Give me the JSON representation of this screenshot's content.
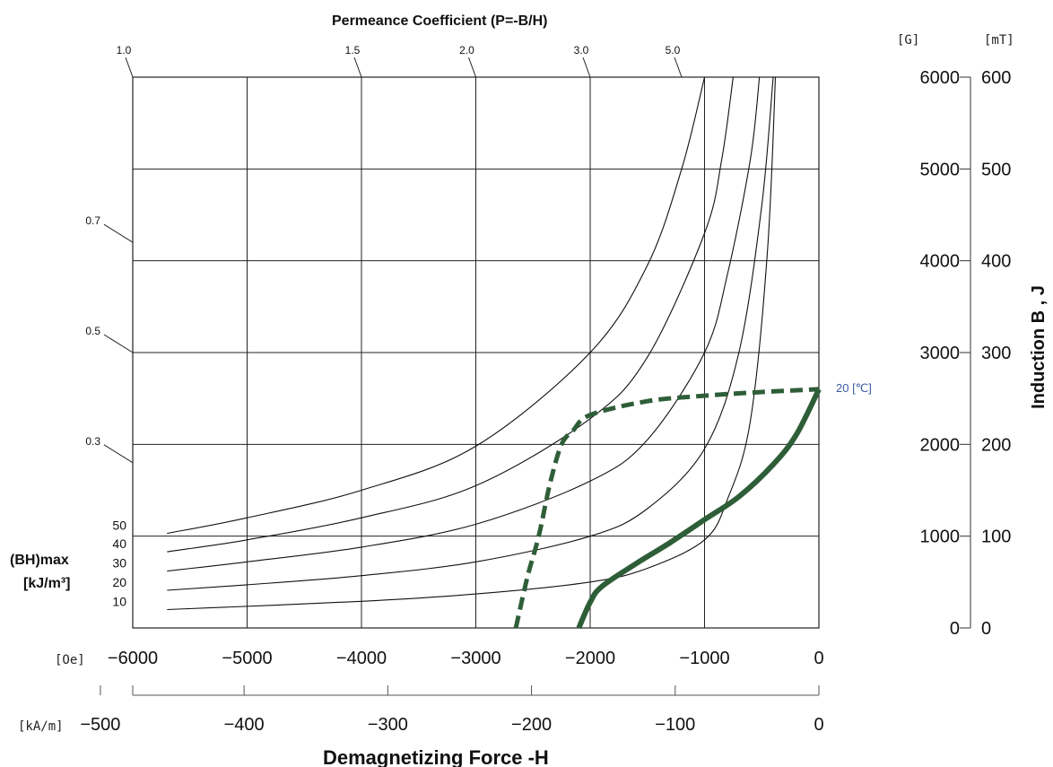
{
  "chart_data": {
    "type": "line",
    "title": "Permeance Coefficient (P=-B/H)",
    "xlabel": "Demagnetizing Force -H",
    "ylabel": "Induction B , J",
    "x_unit_oe": "[Oe]",
    "x_unit_ka": "[kA/m]",
    "y_unit_g": "[G]",
    "y_unit_mt": "[mT]",
    "xlim": [
      -6000,
      0
    ],
    "ylim": [
      0,
      6000
    ],
    "grid": true,
    "x_ticks_oe": [
      "-6000",
      "-5000",
      "-4000",
      "-3000",
      "-2000",
      "-1000",
      "0"
    ],
    "x_ticks_ka": [
      "-500",
      "-400",
      "-300",
      "-200",
      "-100",
      "0"
    ],
    "x_ticks_ka_values": [
      -500,
      -400,
      -300,
      -200,
      -100,
      0
    ],
    "y_ticks_g": [
      "0",
      "1000",
      "2000",
      "3000",
      "4000",
      "5000",
      "6000"
    ],
    "y_ticks_mt": [
      "0",
      "100",
      "200",
      "300",
      "400",
      "500",
      "600"
    ],
    "permeance": [
      {
        "label": "1.0",
        "value": 1.0
      },
      {
        "label": "1.5",
        "value": 1.5
      },
      {
        "label": "2.0",
        "value": 2.0
      },
      {
        "label": "3.0",
        "value": 3.0
      },
      {
        "label": "5.0",
        "value": 5.0
      },
      {
        "label": "0.7",
        "value": 0.7
      },
      {
        "label": "0.5",
        "value": 0.5
      },
      {
        "label": "0.3",
        "value": 0.3
      }
    ],
    "bhmax_label": "(BH)max",
    "bhmax_unit": "[kJ/m³]",
    "bhmax_curves": [
      {
        "label": "10",
        "points": [
          [
            -5700,
            200
          ],
          [
            -4000,
            290
          ],
          [
            -3000,
            370
          ],
          [
            -2000,
            500
          ],
          [
            -1500,
            650
          ],
          [
            -1000,
            960
          ],
          [
            -800,
            1400
          ],
          [
            -600,
            2250
          ],
          [
            -450,
            4100
          ],
          [
            -380,
            6000
          ]
        ]
      },
      {
        "label": "20",
        "points": [
          [
            -5700,
            410
          ],
          [
            -5000,
            470
          ],
          [
            -4000,
            570
          ],
          [
            -3000,
            720
          ],
          [
            -2000,
            1000
          ],
          [
            -1500,
            1300
          ],
          [
            -1000,
            1950
          ],
          [
            -700,
            3000
          ],
          [
            -500,
            4600
          ],
          [
            -400,
            6000
          ]
        ]
      },
      {
        "label": "30",
        "points": [
          [
            -5700,
            620
          ],
          [
            -5000,
            720
          ],
          [
            -4000,
            880
          ],
          [
            -3000,
            1130
          ],
          [
            -2000,
            1600
          ],
          [
            -1500,
            2050
          ],
          [
            -1000,
            3000
          ],
          [
            -800,
            3850
          ],
          [
            -600,
            5100
          ],
          [
            -520,
            6000
          ]
        ]
      },
      {
        "label": "40",
        "points": [
          [
            -5700,
            830
          ],
          [
            -5000,
            960
          ],
          [
            -4000,
            1200
          ],
          [
            -3000,
            1550
          ],
          [
            -2000,
            2280
          ],
          [
            -1500,
            2950
          ],
          [
            -1000,
            4300
          ],
          [
            -850,
            5100
          ],
          [
            -750,
            6000
          ]
        ]
      },
      {
        "label": "50",
        "points": [
          [
            -5700,
            1030
          ],
          [
            -5000,
            1200
          ],
          [
            -4000,
            1500
          ],
          [
            -3000,
            1980
          ],
          [
            -2000,
            3000
          ],
          [
            -1500,
            3950
          ],
          [
            -1200,
            5000
          ],
          [
            -1000,
            6000
          ]
        ]
      }
    ],
    "series": [
      {
        "name": "B",
        "style": "solid",
        "color": "#2e5e38",
        "points": [
          [
            -2100,
            0
          ],
          [
            -2000,
            280
          ],
          [
            -1900,
            450
          ],
          [
            -1600,
            700
          ],
          [
            -1300,
            930
          ],
          [
            -1000,
            1180
          ],
          [
            -700,
            1430
          ],
          [
            -400,
            1780
          ],
          [
            -200,
            2100
          ],
          [
            0,
            2600
          ]
        ]
      },
      {
        "name": "J",
        "style": "dashed",
        "color": "#2e5e38",
        "points": [
          [
            -2650,
            0
          ],
          [
            -2550,
            550
          ],
          [
            -2450,
            1000
          ],
          [
            -2350,
            1580
          ],
          [
            -2250,
            2000
          ],
          [
            -2150,
            2150
          ],
          [
            -2000,
            2320
          ],
          [
            -1500,
            2470
          ],
          [
            -1000,
            2530
          ],
          [
            -500,
            2570
          ],
          [
            0,
            2600
          ]
        ]
      }
    ],
    "temperature_label": "20 [℃]"
  }
}
